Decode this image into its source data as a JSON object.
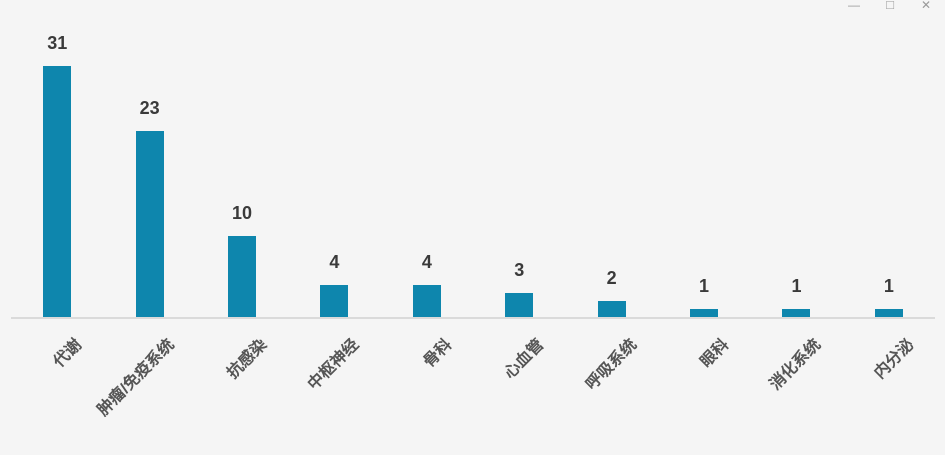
{
  "window": {
    "controls": [
      {
        "name": "minimize",
        "glyph": "—"
      },
      {
        "name": "maximize",
        "glyph": "□"
      },
      {
        "name": "close",
        "glyph": "✕"
      }
    ]
  },
  "chart_data": {
    "type": "bar",
    "categories": [
      "代谢",
      "肿瘤/免疫系统",
      "抗感染",
      "中枢神经",
      "骨科",
      "心血管",
      "呼吸系统",
      "眼科",
      "消化系统",
      "内分泌"
    ],
    "values": [
      31,
      23,
      10,
      4,
      4,
      3,
      2,
      1,
      1,
      1
    ],
    "title": "",
    "xlabel": "",
    "ylabel": "",
    "ylim": [
      0,
      35
    ],
    "grid": false,
    "legend": false,
    "data_labels": true,
    "x_tick_rotation": 45,
    "bar_color": "#0E86AD",
    "value_label_color": "#3A3A3A",
    "category_label_color": "#555555",
    "axis_line_color": "#DADADA",
    "background_color": "#F5F5F5"
  }
}
